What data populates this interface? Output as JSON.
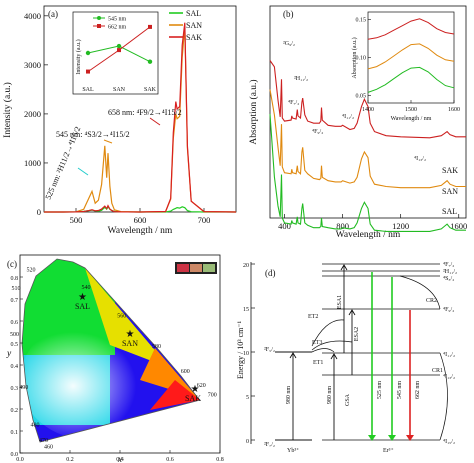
{
  "chart_data": [
    {
      "type": "line",
      "panel": "(a)",
      "xlabel": "Wavelength / nm",
      "ylabel": "Intensity (a.u.)",
      "xlim": [
        450,
        750
      ],
      "ylim": [
        0,
        4200
      ],
      "xticks": [
        "500",
        "600",
        "700"
      ],
      "yticks": [
        "0",
        "1000",
        "2000",
        "3000",
        "4000"
      ],
      "legend": "top-right",
      "series": [
        {
          "name": "SAL",
          "color": "#22cc22",
          "x": [
            450,
            480,
            500,
            512,
            520,
            525,
            530,
            535,
            540,
            545,
            548,
            550,
            553,
            556,
            560,
            570,
            600,
            640,
            648,
            652,
            656,
            658,
            662,
            666,
            670,
            674,
            680,
            700,
            750
          ],
          "y": [
            0,
            0,
            2,
            12,
            28,
            38,
            22,
            18,
            35,
            95,
            60,
            105,
            55,
            32,
            12,
            3,
            0,
            0,
            18,
            52,
            76,
            90,
            80,
            105,
            88,
            28,
            6,
            0,
            0
          ]
        },
        {
          "name": "SAN",
          "color": "#e08a10",
          "x": [
            450,
            480,
            500,
            512,
            520,
            525,
            530,
            535,
            540,
            545,
            548,
            550,
            553,
            556,
            560,
            570,
            600,
            640,
            648,
            652,
            656,
            658,
            662,
            666,
            670,
            674,
            680,
            700,
            750
          ],
          "y": [
            0,
            0,
            5,
            55,
            280,
            420,
            180,
            240,
            560,
            1350,
            700,
            1200,
            520,
            180,
            45,
            8,
            0,
            10,
            260,
            1500,
            2000,
            1900,
            1950,
            3150,
            3780,
            1300,
            220,
            8,
            0
          ]
        },
        {
          "name": "SAK",
          "color": "#d92020",
          "x": [
            450,
            480,
            500,
            512,
            520,
            525,
            530,
            535,
            540,
            545,
            548,
            550,
            553,
            556,
            560,
            570,
            600,
            640,
            648,
            652,
            656,
            658,
            662,
            666,
            670,
            674,
            680,
            700,
            750
          ],
          "y": [
            0,
            0,
            2,
            10,
            28,
            45,
            25,
            30,
            60,
            120,
            70,
            130,
            60,
            28,
            8,
            2,
            0,
            10,
            280,
            1620,
            2250,
            2100,
            2150,
            3400,
            3860,
            1350,
            220,
            8,
            0
          ]
        }
      ],
      "annotations": {
        "panel_label": "(a)",
        "ann_658": "658 nm: ⁴F9/2→⁴I15/2",
        "ann_545": "545 nm: ⁴S3/2→⁴I15/2",
        "ann_525": "525 nm: ²H11/2→⁴I15/2"
      },
      "inset": {
        "type": "line",
        "ylabel": "Intensity (a.u.)",
        "categories": [
          "SAL",
          "SAN",
          "SAK"
        ],
        "series": [
          {
            "name": "545 nm",
            "color": "#22bb22",
            "values": [
              0.5,
              0.62,
              0.35
            ]
          },
          {
            "name": "662 nm",
            "color": "#cc2020",
            "values": [
              0.18,
              0.55,
              0.95
            ]
          }
        ]
      }
    },
    {
      "type": "line",
      "panel": "(b)",
      "xlabel": "Wavelength / nm",
      "ylabel": "Absorption (a.u.)",
      "xlim": [
        300,
        1650
      ],
      "xticks": [
        "400",
        "800",
        "1200",
        "1600"
      ],
      "series": [
        {
          "name": "SAK",
          "color": "#cc2020",
          "x": [
            300,
            330,
            355,
            370,
            379,
            385,
            400,
            445,
            450,
            455,
            480,
            488,
            493,
            510,
            520,
            525,
            540,
            560,
            600,
            640,
            650,
            655,
            660,
            700,
            750,
            790,
            800,
            850,
            880,
            900,
            930,
            950,
            975,
            990,
            1020,
            1100,
            1200,
            1400,
            1480,
            1500,
            1520,
            1540,
            1580,
            1650
          ],
          "y": [
            1,
            0.94,
            0.62,
            0.46,
            0.82,
            0.45,
            0.42,
            0.43,
            0.47,
            0.45,
            0.44,
            0.53,
            0.47,
            0.45,
            0.6,
            0.64,
            0.48,
            0.42,
            0.4,
            0.4,
            0.42,
            0.55,
            0.43,
            0.38,
            0.37,
            0.37,
            0.38,
            0.34,
            0.35,
            0.4,
            0.56,
            0.63,
            0.56,
            0.4,
            0.32,
            0.28,
            0.27,
            0.26,
            0.28,
            0.3,
            0.32,
            0.29,
            0.27,
            0.27
          ]
        },
        {
          "name": "SAN",
          "color": "#e08a10",
          "x": [
            300,
            330,
            355,
            370,
            379,
            385,
            400,
            445,
            450,
            455,
            480,
            488,
            493,
            510,
            520,
            525,
            540,
            560,
            600,
            640,
            650,
            655,
            660,
            700,
            750,
            790,
            800,
            850,
            880,
            900,
            930,
            950,
            975,
            990,
            1020,
            1100,
            1200,
            1400,
            1480,
            1500,
            1520,
            1540,
            1580,
            1650
          ],
          "y": [
            1,
            0.78,
            0.5,
            0.34,
            0.7,
            0.33,
            0.28,
            0.27,
            0.31,
            0.28,
            0.27,
            0.34,
            0.29,
            0.27,
            0.46,
            0.5,
            0.3,
            0.27,
            0.23,
            0.22,
            0.23,
            0.34,
            0.24,
            0.21,
            0.2,
            0.2,
            0.21,
            0.19,
            0.2,
            0.24,
            0.4,
            0.46,
            0.41,
            0.25,
            0.18,
            0.16,
            0.15,
            0.15,
            0.17,
            0.19,
            0.21,
            0.18,
            0.16,
            0.16
          ]
        },
        {
          "name": "SAL",
          "color": "#22bb22",
          "x": [
            300,
            330,
            355,
            370,
            379,
            385,
            400,
            445,
            450,
            455,
            480,
            488,
            493,
            510,
            520,
            525,
            540,
            560,
            600,
            640,
            650,
            655,
            660,
            700,
            750,
            790,
            800,
            850,
            880,
            900,
            930,
            950,
            975,
            990,
            1020,
            1100,
            1200,
            1400,
            1480,
            1500,
            1520,
            1540,
            1580,
            1650
          ],
          "y": [
            1,
            0.48,
            0.24,
            0.15,
            0.5,
            0.14,
            0.1,
            0.09,
            0.12,
            0.1,
            0.09,
            0.15,
            0.1,
            0.09,
            0.22,
            0.26,
            0.1,
            0.08,
            0.06,
            0.06,
            0.07,
            0.14,
            0.07,
            0.06,
            0.05,
            0.05,
            0.06,
            0.05,
            0.06,
            0.1,
            0.22,
            0.27,
            0.22,
            0.09,
            0.04,
            0.03,
            0.03,
            0.03,
            0.05,
            0.07,
            0.09,
            0.06,
            0.04,
            0.04
          ]
        }
      ],
      "labels": {
        "panel_label": "(b)",
        "g": "²G₉/₂",
        "h": "²H₁₁/₂",
        "f": "⁴F₇/₂",
        "f9": "⁴F₉/₂",
        "i11": "⁴I₁₁/₂",
        "i13": "⁴I₁₃/₂",
        "sak": "SAK",
        "san": "SAN",
        "sal": "SAL"
      },
      "inset": {
        "xlabel": "Wavelength / nm",
        "ylabel": "Absorption (a.u.)",
        "xticks": [
          "1400",
          "1500",
          "1600"
        ],
        "yticks": [
          "0.05",
          "0.10",
          "0.15"
        ],
        "x": [
          1400,
          1420,
          1440,
          1460,
          1480,
          1500,
          1520,
          1540,
          1560,
          1580,
          1600
        ],
        "series": [
          {
            "name": "SAK",
            "color": "#cc2020",
            "y": [
              0.124,
              0.126,
              0.13,
              0.136,
              0.142,
              0.148,
              0.151,
              0.146,
              0.138,
              0.133,
              0.131
            ]
          },
          {
            "name": "SAN",
            "color": "#e08a10",
            "y": [
              0.085,
              0.088,
              0.094,
              0.102,
              0.11,
              0.117,
              0.118,
              0.112,
              0.103,
              0.097,
              0.095
            ]
          },
          {
            "name": "SAL",
            "color": "#22bb22",
            "y": [
              0.054,
              0.058,
              0.064,
              0.072,
              0.08,
              0.086,
              0.087,
              0.081,
              0.071,
              0.063,
              0.06
            ]
          }
        ]
      }
    },
    {
      "type": "scatter",
      "panel": "(c)",
      "xlabel": "x",
      "ylabel": "y",
      "xlim": [
        0,
        0.8
      ],
      "ylim": [
        0,
        0.9
      ],
      "xticks": [
        "0.0",
        "0.2",
        "0.4",
        "0.6",
        "0.8"
      ],
      "yticks": [
        "0.0",
        "0.1",
        "0.2",
        "0.3",
        "0.4",
        "0.5",
        "0.6",
        "0.7",
        "0.8"
      ],
      "points": [
        {
          "name": "SAL",
          "x": 0.25,
          "y": 0.71
        },
        {
          "name": "SAN",
          "x": 0.44,
          "y": 0.54
        },
        {
          "name": "SAK",
          "x": 0.7,
          "y": 0.29
        }
      ],
      "wavelength_labels": [
        "460",
        "470",
        "480",
        "490",
        "500",
        "510",
        "520",
        "540",
        "560",
        "580",
        "600",
        "620",
        "700"
      ]
    }
  ],
  "diagram": {
    "panel_label": "(d)",
    "ylabel": "Energy / 10³ cm⁻¹",
    "yticks": [
      "0",
      "5",
      "10",
      "15",
      "20"
    ],
    "yb_levels": {
      "upper": "²F₅/₂",
      "lower": "²F₇/₂",
      "ion": "Yb³⁺"
    },
    "er_ion": "Er³⁺",
    "levels": [
      "⁴F₇/₂",
      "²H₁₁/₂",
      "⁴S₃/₂",
      "⁴F₉/₂",
      "⁴I₁₁/₂",
      "⁴I₁₃/₂",
      "⁴I₁₅/₂"
    ],
    "processes": [
      "ESA1",
      "ESA2",
      "GSA",
      "ET1",
      "ET2",
      "ET3",
      "CR1",
      "CR2"
    ],
    "pump_labels": [
      "980 nm",
      "980 nm"
    ],
    "emissions": [
      {
        "label": "525 nm",
        "color": "#22cc22"
      },
      {
        "label": "545 nm",
        "color": "#22cc22"
      },
      {
        "label": "662 nm",
        "color": "#dd2222"
      }
    ]
  }
}
